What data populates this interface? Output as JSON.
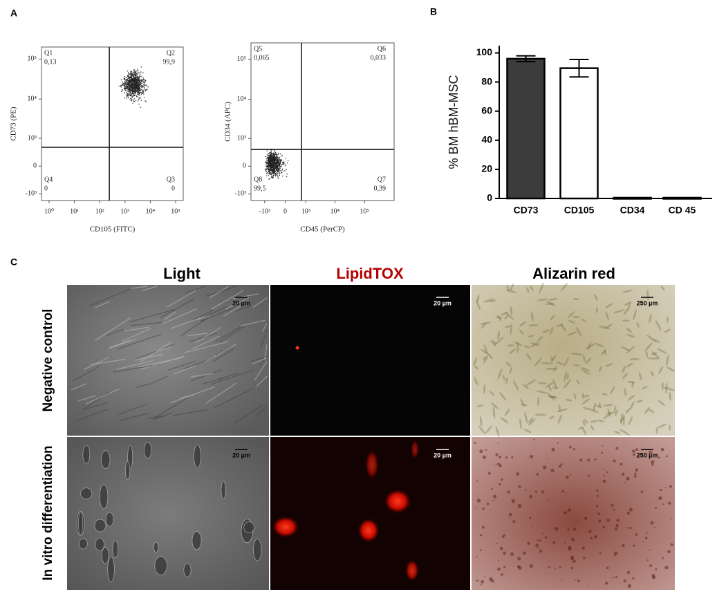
{
  "panel_labels": [
    "A",
    "B",
    "C"
  ],
  "chart_data": [
    {
      "type": "scatter",
      "xlabel": "CD105 (FITC)",
      "ylabel": "CD73 (PE)",
      "xscale": "log",
      "yscale": "biexponential",
      "xlim": [
        0.5,
        200000
      ],
      "ylim": [
        -1500,
        200000
      ],
      "xticks": [
        {
          "value": 1,
          "label": "10⁰"
        },
        {
          "value": 10,
          "label": "10¹"
        },
        {
          "value": 100,
          "label": "10²"
        },
        {
          "value": 1000,
          "label": "10³"
        },
        {
          "value": 10000,
          "label": "10⁴"
        },
        {
          "value": 100000,
          "label": "10⁵"
        }
      ],
      "yticks": [
        {
          "value": -1000,
          "label": "-10³"
        },
        0,
        {
          "value": 1000,
          "label": "10³"
        },
        {
          "value": 10000,
          "label": "10⁴"
        },
        {
          "value": 100000,
          "label": "10⁵"
        }
      ],
      "gate": [
        240,
        550
      ],
      "quadrants": [
        {
          "name": "Q1",
          "value": 0.13,
          "label": "0,13"
        },
        {
          "name": "Q2",
          "value": 99.9,
          "label": "99,9"
        },
        {
          "name": "Q3",
          "value": 0
        },
        {
          "name": "Q4",
          "value": 0
        }
      ]
    },
    {
      "type": "scatter",
      "xlabel": "CD45 (PerCP)",
      "ylabel": "CD34 (APC)",
      "xscale": "biexponential",
      "yscale": "biexponential",
      "xlim": [
        -3000,
        1000000
      ],
      "ylim": [
        -1500,
        260000
      ],
      "xticks": [
        {
          "value": -1000,
          "label": "-10³"
        },
        0,
        {
          "value": 1000,
          "label": "10³"
        },
        {
          "value": 10000,
          "label": "10⁴"
        },
        {
          "value": 100000,
          "label": "10⁵"
        }
      ],
      "yticks": [
        {
          "value": -1000,
          "label": "-10³"
        },
        0,
        {
          "value": 1000,
          "label": "10³"
        },
        {
          "value": 10000,
          "label": "10⁴"
        },
        {
          "value": 100000,
          "label": "10⁵"
        }
      ],
      "gate": [
        680,
        470
      ],
      "quadrants": [
        {
          "name": "Q5",
          "value": 0.065,
          "label": "0,065"
        },
        {
          "name": "Q6",
          "value": 0.033,
          "label": "0,033"
        },
        {
          "name": "Q7",
          "value": 0.39,
          "label": "0,39"
        },
        {
          "name": "Q8",
          "value": 99.5,
          "label": "99,5"
        }
      ]
    },
    {
      "type": "bar",
      "ylabel": "% BM hBM-MSC",
      "categories": [
        "CD73",
        "CD105",
        "CD34",
        "CD 45"
      ],
      "values": [
        96,
        89.5,
        0.5,
        0.5
      ],
      "errors": [
        2,
        6,
        null,
        null
      ],
      "colors": [
        "#3c3c3c",
        "#ffffff",
        "#3c3c3c",
        "#3c3c3c"
      ],
      "ylim": [
        0,
        105
      ],
      "yticks": [
        0,
        20,
        40,
        60,
        80,
        100
      ]
    }
  ],
  "micrographs": {
    "columns": [
      "Light",
      "LipidTOX",
      "Alizarin red"
    ],
    "rows": [
      "Negative control",
      "In vitro differentiation"
    ],
    "scale_bars": [
      [
        "20 µm",
        "20 µm",
        "250 µm"
      ],
      [
        "20 µm",
        "20 µm",
        "250 µm"
      ]
    ]
  }
}
